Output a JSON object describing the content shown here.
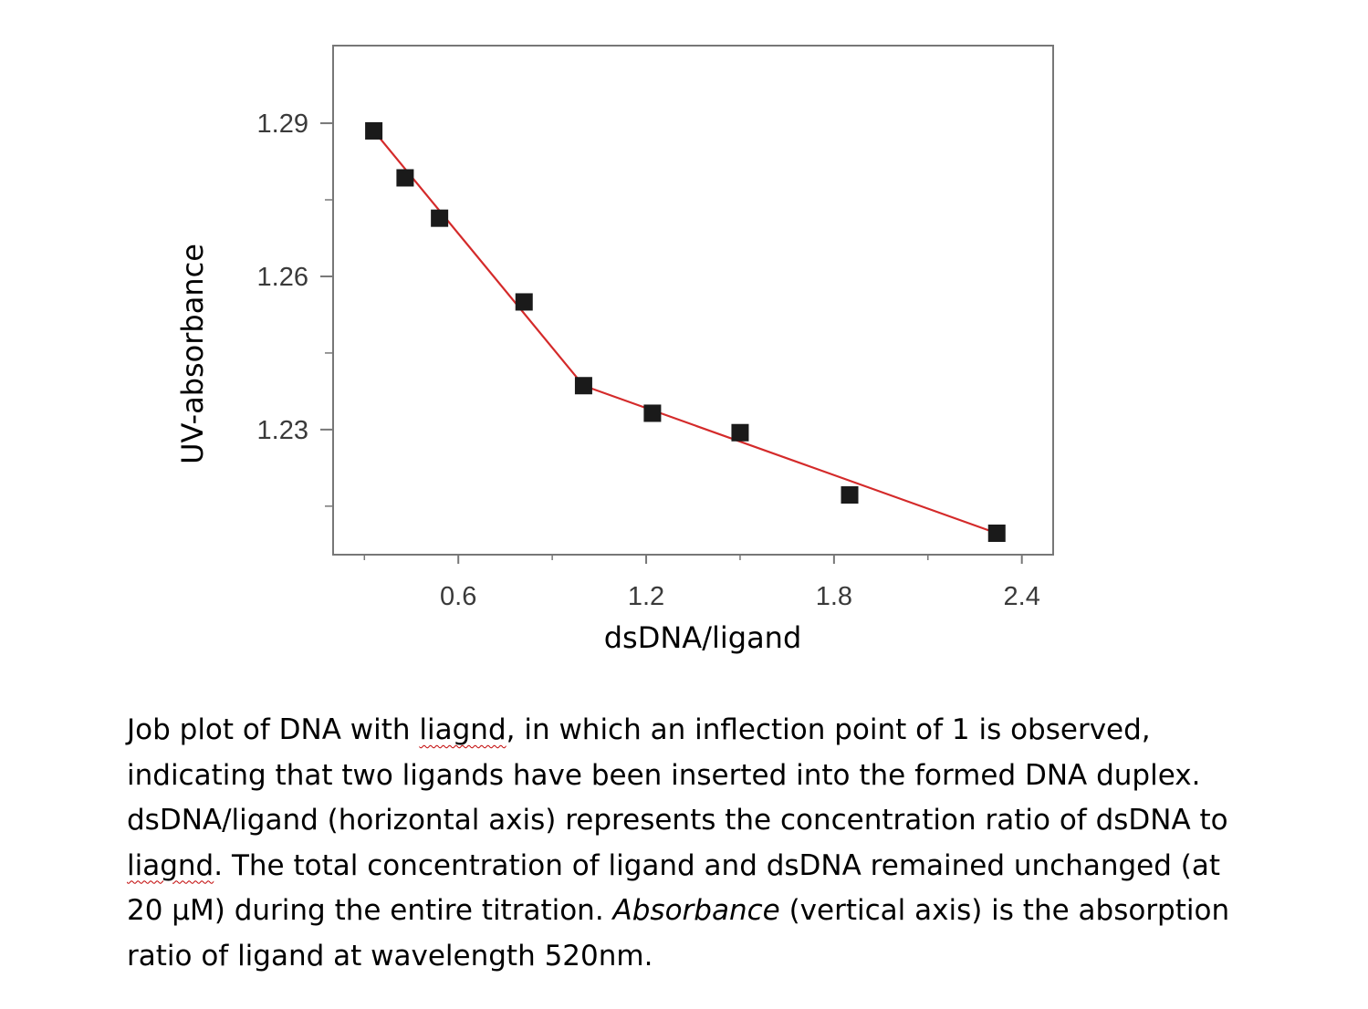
{
  "chart_data": {
    "type": "scatter",
    "xlabel": "dsDNA/ligand",
    "ylabel": "UV-absorbance",
    "xlim": [
      0.2,
      2.5
    ],
    "ylim": [
      1.2055,
      1.3052
    ],
    "x_ticks": [
      0.6,
      1.2,
      1.8,
      2.4
    ],
    "x_tick_labels": [
      "0.6",
      "1.2",
      "1.8",
      "2.4"
    ],
    "x_minor_ticks": [
      0.3,
      0.9,
      1.5,
      2.1
    ],
    "y_ticks": [
      1.23,
      1.26,
      1.29
    ],
    "y_tick_labels": [
      "1.23",
      "1.26",
      "1.29"
    ],
    "y_minor_ticks": [
      1.215,
      1.245,
      1.275
    ],
    "grid": false,
    "series": [
      {
        "marker": "square",
        "color": "#1a1a1a",
        "points": [
          {
            "x": 0.33,
            "y": 1.2885
          },
          {
            "x": 0.43,
            "y": 1.2793
          },
          {
            "x": 0.54,
            "y": 1.2714
          },
          {
            "x": 0.81,
            "y": 1.255
          },
          {
            "x": 1.0,
            "y": 1.2386
          },
          {
            "x": 1.22,
            "y": 1.2332
          },
          {
            "x": 1.5,
            "y": 1.2294
          },
          {
            "x": 1.85,
            "y": 1.2172
          },
          {
            "x": 2.32,
            "y": 1.2097
          }
        ]
      }
    ],
    "fit_line": {
      "color": "#d42a2a",
      "points": [
        {
          "x": 0.33,
          "y": 1.2885
        },
        {
          "x": 1.0,
          "y": 1.2386
        },
        {
          "x": 2.32,
          "y": 1.2097
        }
      ]
    }
  },
  "caption": {
    "lines": [
      [
        {
          "text": "Job plot of DNA with "
        },
        {
          "text": "liagnd",
          "squiggle": true
        },
        {
          "text": ", in which an inflection point of 1 is observed,"
        }
      ],
      [
        {
          "text": "indicating that two ligands have been inserted into the formed DNA duplex."
        }
      ],
      [
        {
          "text": "dsDNA/ligand (horizontal axis) represents the concentration ratio of dsDNA to"
        }
      ],
      [
        {
          "text": "liagnd",
          "squiggle": true
        },
        {
          "text": ". The total concentration of ligand and dsDNA remained unchanged (at"
        }
      ],
      [
        {
          "text": "20 μM) during the entire titration. "
        },
        {
          "text": "Absorbance",
          "italic": true
        },
        {
          "text": " (vertical axis) is the absorption"
        }
      ],
      [
        {
          "text": "ratio of ligand at wavelength 520nm."
        }
      ]
    ]
  }
}
